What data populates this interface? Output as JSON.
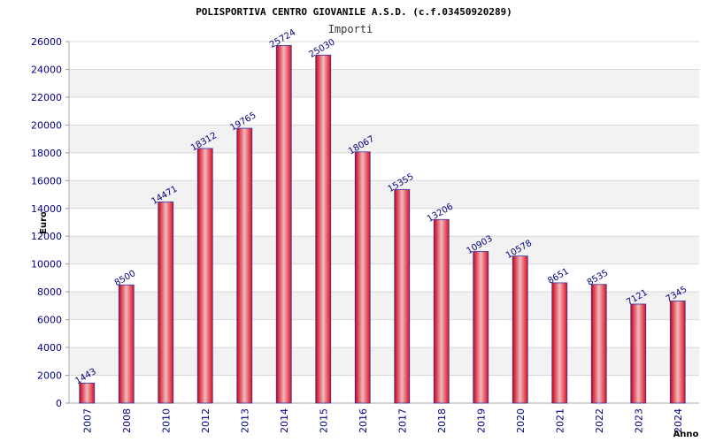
{
  "chart_data": {
    "type": "bar",
    "title": "POLISPORTIVA CENTRO GIOVANILE A.S.D. (c.f.03450920289)",
    "series_name": "Importi",
    "xlabel": "Anno",
    "ylabel": "Euro",
    "categories": [
      "2007",
      "2008",
      "2010",
      "2012",
      "2013",
      "2014",
      "2015",
      "2016",
      "2017",
      "2018",
      "2019",
      "2020",
      "2021",
      "2022",
      "2023",
      "2024"
    ],
    "values": [
      1443,
      8500,
      14471,
      18312,
      19765,
      25724,
      25030,
      18067,
      15355,
      13206,
      10903,
      10578,
      8651,
      8535,
      7121,
      7345
    ],
    "ylim": [
      0,
      26000
    ],
    "yticks": [
      0,
      2000,
      4000,
      6000,
      8000,
      10000,
      12000,
      14000,
      16000,
      18000,
      20000,
      22000,
      24000,
      26000
    ],
    "grid": true,
    "colors": {
      "bar_edge": "#cc0000",
      "bar_mid": "#f0b0b8",
      "bar_base": "#e0202a",
      "bar_outline": "#3333aa",
      "text": "#000080",
      "band": "#f2f2f2",
      "grid": "#d8d8d8"
    }
  }
}
